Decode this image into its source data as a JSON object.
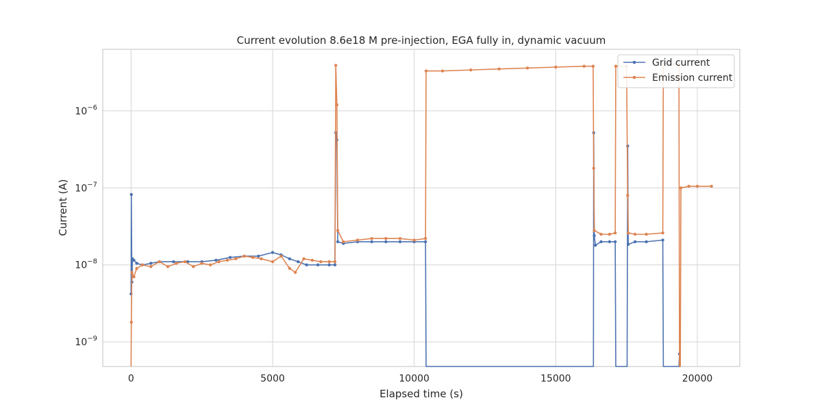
{
  "chart_data": {
    "type": "line",
    "title": "Current evolution 8.6e18 M pre-injection, EGA fully in, dynamic vacuum",
    "xlabel": "Elapsed time (s)",
    "ylabel": "Current (A)",
    "xscale": "linear",
    "yscale": "log",
    "xlim": [
      -1000,
      21500
    ],
    "ylim": [
      4.8e-10,
      6.3e-06
    ],
    "xticks": [
      0,
      5000,
      10000,
      15000,
      20000
    ],
    "xtick_labels": [
      "0",
      "5000",
      "10000",
      "15000",
      "20000"
    ],
    "yticks": [
      1e-09,
      1e-08,
      1e-07,
      1e-06
    ],
    "ytick_labels": [
      {
        "base": "10",
        "exp": "−9"
      },
      {
        "base": "10",
        "exp": "−8"
      },
      {
        "base": "10",
        "exp": "−7"
      },
      {
        "base": "10",
        "exp": "−6"
      }
    ],
    "grid": true,
    "legend_position": "top-right",
    "series": [
      {
        "name": "Grid current",
        "color": "#4c72b0",
        "marker": "circle",
        "points": [
          [
            0,
            4.2e-09
          ],
          [
            10,
            8.2e-08
          ],
          [
            30,
            6e-09
          ],
          [
            50,
            1.2e-08
          ],
          [
            100,
            1.15e-08
          ],
          [
            200,
            1.05e-08
          ],
          [
            400,
            1e-08
          ],
          [
            700,
            1.05e-08
          ],
          [
            1000,
            1.1e-08
          ],
          [
            1500,
            1.1e-08
          ],
          [
            2000,
            1.1e-08
          ],
          [
            2500,
            1.1e-08
          ],
          [
            3000,
            1.15e-08
          ],
          [
            3500,
            1.25e-08
          ],
          [
            4000,
            1.3e-08
          ],
          [
            4500,
            1.3e-08
          ],
          [
            5000,
            1.45e-08
          ],
          [
            5300,
            1.35e-08
          ],
          [
            5600,
            1.2e-08
          ],
          [
            5900,
            1.1e-08
          ],
          [
            6200,
            1e-08
          ],
          [
            6600,
            1e-08
          ],
          [
            7000,
            1e-08
          ],
          [
            7200,
            1e-08
          ],
          [
            7230,
            5.2e-07
          ],
          [
            7270,
            4.2e-07
          ],
          [
            7300,
            2e-08
          ],
          [
            7500,
            1.9e-08
          ],
          [
            8000,
            2e-08
          ],
          [
            8500,
            2e-08
          ],
          [
            9000,
            2e-08
          ],
          [
            9500,
            2e-08
          ],
          [
            10000,
            2e-08
          ],
          [
            10400,
            2e-08
          ],
          [
            10420,
            4.8e-10
          ],
          [
            16330,
            4.8e-10
          ],
          [
            16340,
            5.2e-07
          ],
          [
            16360,
            2.4e-08
          ],
          [
            16400,
            1.8e-08
          ],
          [
            16600,
            2e-08
          ],
          [
            16900,
            2e-08
          ],
          [
            17100,
            2e-08
          ],
          [
            17120,
            4.8e-10
          ],
          [
            17520,
            4.8e-10
          ],
          [
            17540,
            3.5e-07
          ],
          [
            17560,
            1.85e-08
          ],
          [
            17800,
            2e-08
          ],
          [
            18200,
            2e-08
          ],
          [
            18780,
            2.1e-08
          ],
          [
            18800,
            4.8e-10
          ],
          [
            19350,
            4.8e-10
          ],
          [
            19370,
            7e-10
          ]
        ]
      },
      {
        "name": "Emission current",
        "color": "#dd8452",
        "marker": "circle",
        "points": [
          [
            0,
            4.8e-10
          ],
          [
            10,
            1.8e-09
          ],
          [
            30,
            8e-09
          ],
          [
            100,
            7e-09
          ],
          [
            200,
            9e-09
          ],
          [
            400,
            1e-08
          ],
          [
            700,
            9.5e-09
          ],
          [
            1000,
            1.1e-08
          ],
          [
            1300,
            9.5e-09
          ],
          [
            1600,
            1.05e-08
          ],
          [
            1900,
            1.1e-08
          ],
          [
            2200,
            9.5e-09
          ],
          [
            2500,
            1.05e-08
          ],
          [
            2800,
            1e-08
          ],
          [
            3100,
            1.1e-08
          ],
          [
            3400,
            1.15e-08
          ],
          [
            3700,
            1.2e-08
          ],
          [
            4000,
            1.3e-08
          ],
          [
            4300,
            1.25e-08
          ],
          [
            4600,
            1.2e-08
          ],
          [
            5000,
            1.1e-08
          ],
          [
            5300,
            1.3e-08
          ],
          [
            5600,
            9e-09
          ],
          [
            5800,
            8e-09
          ],
          [
            6100,
            1.2e-08
          ],
          [
            6400,
            1.15e-08
          ],
          [
            6700,
            1.1e-08
          ],
          [
            7000,
            1.1e-08
          ],
          [
            7200,
            1.1e-08
          ],
          [
            7230,
            3.9e-06
          ],
          [
            7270,
            1.2e-06
          ],
          [
            7300,
            2.8e-08
          ],
          [
            7500,
            2e-08
          ],
          [
            8000,
            2.1e-08
          ],
          [
            8500,
            2.2e-08
          ],
          [
            9000,
            2.2e-08
          ],
          [
            9500,
            2.2e-08
          ],
          [
            10000,
            2.1e-08
          ],
          [
            10400,
            2.2e-08
          ],
          [
            10420,
            3.3e-06
          ],
          [
            11000,
            3.3e-06
          ],
          [
            12000,
            3.4e-06
          ],
          [
            13000,
            3.5e-06
          ],
          [
            14000,
            3.6e-06
          ],
          [
            15000,
            3.7e-06
          ],
          [
            16000,
            3.8e-06
          ],
          [
            16320,
            3.8e-06
          ],
          [
            16340,
            1.8e-07
          ],
          [
            16360,
            2.8e-08
          ],
          [
            16600,
            2.5e-08
          ],
          [
            16900,
            2.5e-08
          ],
          [
            17100,
            2.6e-08
          ],
          [
            17120,
            3.8e-06
          ],
          [
            17500,
            3.8e-06
          ],
          [
            17540,
            8e-08
          ],
          [
            17560,
            2.6e-08
          ],
          [
            17800,
            2.5e-08
          ],
          [
            18200,
            2.5e-08
          ],
          [
            18780,
            2.6e-08
          ],
          [
            18800,
            4.1e-06
          ],
          [
            19350,
            4e-06
          ],
          [
            19370,
            4.8e-10
          ],
          [
            19400,
            4.8e-10
          ],
          [
            19420,
            1e-07
          ],
          [
            19700,
            1.05e-07
          ],
          [
            20000,
            1.05e-07
          ],
          [
            20500,
            1.05e-07
          ]
        ]
      }
    ]
  }
}
